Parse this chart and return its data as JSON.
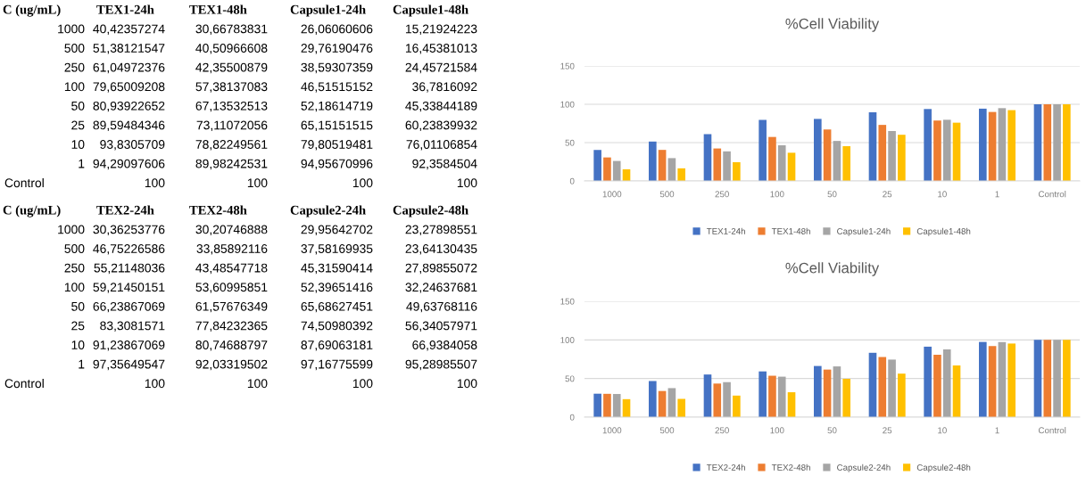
{
  "chart_data": [
    {
      "type": "other",
      "annotations": [
        "C (ug/mL)",
        "TEX1-24h",
        "TEX1-48h",
        "Capsule1-24h",
        "Capsule1-48h",
        "1000",
        "40,42357274",
        "30,66783831",
        "26,06060606",
        "15,21924223",
        "500",
        "51,38121547",
        "40,50966608",
        "29,76190476",
        "16,45381013",
        "250",
        "61,04972376",
        "42,35500879",
        "38,59307359",
        "24,45721584",
        "100",
        "79,65009208",
        "57,38137083",
        "46,51515152",
        "36,7816092",
        "50",
        "80,93922652",
        "67,13532513",
        "52,18614719",
        "45,33844189",
        "25",
        "89,59484346",
        "73,11072056",
        "65,15151515",
        "60,23839932",
        "10",
        "93,8305709",
        "78,82249561",
        "79,80519481",
        "76,01106854",
        "1",
        "94,29097606",
        "89,98242531",
        "94,95670996",
        "92,3584504",
        "Control",
        "100",
        "100",
        "100",
        "100"
      ]
    },
    {
      "type": "bar",
      "title": "%Cell Viability",
      "categories": [
        "1000",
        "500",
        "250",
        "100",
        "50",
        "25",
        "10",
        "1",
        "Control"
      ],
      "ylim": [
        0,
        150
      ],
      "yticks": [
        0,
        50,
        100,
        150
      ],
      "grid": "y",
      "legend": "bottom",
      "series": [
        {
          "name": "TEX1-24h",
          "color": "#4472c4",
          "values": [
            40.42357274,
            51.38121547,
            61.04972376,
            79.65009208,
            80.93922652,
            89.59484346,
            93.8305709,
            94.29097606,
            100
          ]
        },
        {
          "name": "TEX1-48h",
          "color": "#ed7d31",
          "values": [
            30.66783831,
            40.50966608,
            42.35500879,
            57.38137083,
            67.13532513,
            73.11072056,
            78.82249561,
            89.98242531,
            100
          ]
        },
        {
          "name": "Capsule1-24h",
          "color": "#a5a5a5",
          "values": [
            26.06060606,
            29.76190476,
            38.59307359,
            46.51515152,
            52.18614719,
            65.15151515,
            79.80519481,
            94.95670996,
            100
          ]
        },
        {
          "name": "Capsule1-48h",
          "color": "#ffc000",
          "values": [
            15.21924223,
            16.45381013,
            24.45721584,
            36.7816092,
            45.33844189,
            60.23839932,
            76.01106854,
            92.3584504,
            100
          ]
        }
      ]
    },
    {
      "type": "other",
      "annotations": [
        "C (ug/mL)",
        "TEX2-24h",
        "TEX2-48h",
        "Capsule2-24h",
        "Capsule2-48h",
        "1000",
        "30,36253776",
        "30,20746888",
        "29,95642702",
        "23,27898551",
        "500",
        "46,75226586",
        "33,85892116",
        "37,58169935",
        "23,64130435",
        "250",
        "55,21148036",
        "43,48547718",
        "45,31590414",
        "27,89855072",
        "100",
        "59,21450151",
        "53,60995851",
        "52,39651416",
        "32,24637681",
        "50",
        "66,23867069",
        "61,57676349",
        "65,68627451",
        "49,63768116",
        "25",
        "83,3081571",
        "77,84232365",
        "74,50980392",
        "56,34057971",
        "10",
        "91,23867069",
        "80,74688797",
        "87,69063181",
        "66,9384058",
        "1",
        "97,35649547",
        "92,03319502",
        "97,16775599",
        "95,28985507",
        "Control",
        "100",
        "100",
        "100",
        "100"
      ]
    },
    {
      "type": "bar",
      "title": "%Cell Viability",
      "categories": [
        "1000",
        "500",
        "250",
        "100",
        "50",
        "25",
        "10",
        "1",
        "Control"
      ],
      "ylim": [
        0,
        150
      ],
      "yticks": [
        0,
        50,
        100,
        150
      ],
      "grid": "y",
      "legend": "bottom",
      "series": [
        {
          "name": "TEX2-24h",
          "color": "#4472c4",
          "values": [
            30.36253776,
            46.75226586,
            55.21148036,
            59.21450151,
            66.23867069,
            83.3081571,
            91.23867069,
            97.35649547,
            100
          ]
        },
        {
          "name": "TEX2-48h",
          "color": "#ed7d31",
          "values": [
            30.20746888,
            33.85892116,
            43.48547718,
            53.60995851,
            61.57676349,
            77.84232365,
            80.74688797,
            92.03319502,
            100
          ]
        },
        {
          "name": "Capsule2-24h",
          "color": "#a5a5a5",
          "values": [
            29.95642702,
            37.58169935,
            45.31590414,
            52.39651416,
            65.68627451,
            74.50980392,
            87.69063181,
            97.16775599,
            100
          ]
        },
        {
          "name": "Capsule2-48h",
          "color": "#ffc000",
          "values": [
            23.27898551,
            23.64130435,
            27.89855072,
            32.24637681,
            49.63768116,
            56.34057971,
            66.9384058,
            95.28985507,
            100
          ]
        }
      ]
    }
  ]
}
